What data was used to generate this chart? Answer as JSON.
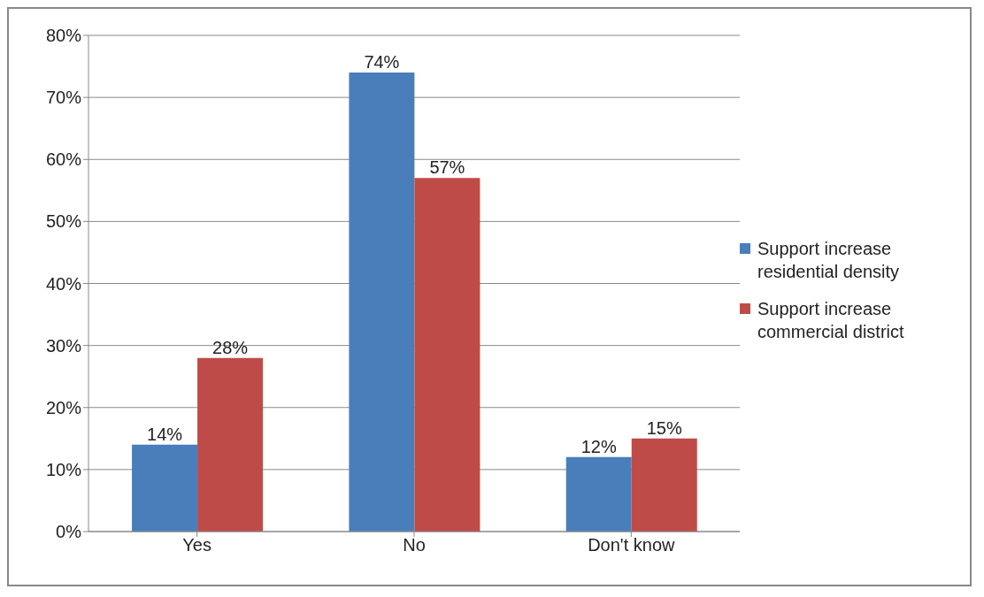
{
  "chart_data": {
    "type": "bar",
    "categories": [
      "Yes",
      "No",
      "Don't know"
    ],
    "series": [
      {
        "name": "Support increase residential density",
        "color": "#4a7ebb",
        "values": [
          14,
          74,
          12
        ],
        "value_labels": [
          "14%",
          "74%",
          "12%"
        ]
      },
      {
        "name": "Support increase commercial district",
        "color": "#be4b48",
        "values": [
          28,
          57,
          15
        ],
        "value_labels": [
          "28%",
          "57%",
          "15%"
        ]
      }
    ],
    "ylim": [
      0,
      80
    ],
    "yticks": [
      {
        "value": 0,
        "label": "0%"
      },
      {
        "value": 10,
        "label": "10%"
      },
      {
        "value": 20,
        "label": "20%"
      },
      {
        "value": 30,
        "label": "30%"
      },
      {
        "value": 40,
        "label": "40%"
      },
      {
        "value": 50,
        "label": "50%"
      },
      {
        "value": 60,
        "label": "60%"
      },
      {
        "value": 70,
        "label": "70%"
      },
      {
        "value": 80,
        "label": "80%"
      }
    ],
    "grid": "y",
    "legend": "right"
  }
}
